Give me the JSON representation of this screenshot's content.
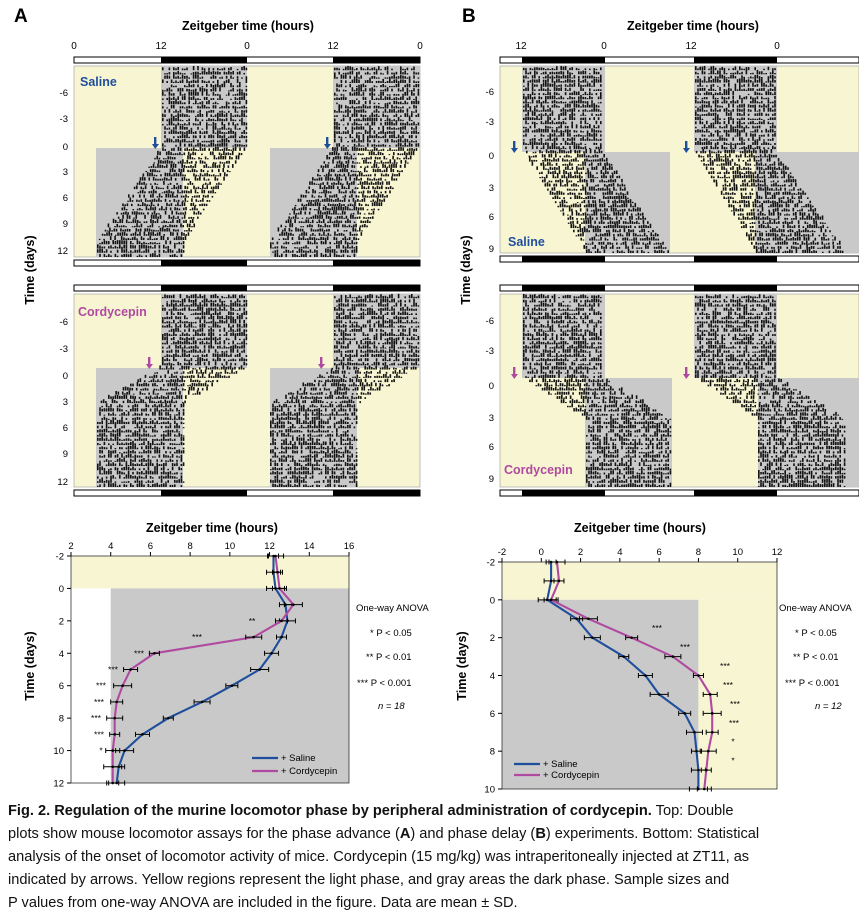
{
  "colors": {
    "light_phase": "#f7f5d2",
    "dark_phase": "#c9c9c9",
    "saline": "#1f4e9c",
    "cordycepin": "#b04aa0",
    "activity": "#111111"
  },
  "panels": {
    "A": {
      "letter": "A",
      "axis_title": "Zeitgeber time (hours)",
      "ticks": [
        "0",
        "12",
        "0",
        "12",
        "0"
      ],
      "actogram_saline": {
        "label": "Saline",
        "days": [
          "-6",
          "-3",
          "0",
          "3",
          "6",
          "9",
          "12"
        ]
      },
      "actogram_cordycepin": {
        "label": "Cordycepin",
        "days": [
          "-6",
          "-3",
          "0",
          "3",
          "6",
          "9",
          "12"
        ]
      }
    },
    "B": {
      "letter": "B",
      "axis_title": "Zeitgeber time (hours)",
      "ticks": [
        "12",
        "0",
        "12",
        "0"
      ],
      "actogram_saline": {
        "label": "Saline",
        "days": [
          "-6",
          "-3",
          "0",
          "3",
          "6",
          "9"
        ]
      },
      "actogram_cordycepin": {
        "label": "Cordycepin",
        "days": [
          "-6",
          "-3",
          "0",
          "3",
          "6",
          "9"
        ]
      }
    }
  },
  "time_axis_label": "Time (days)",
  "stats": {
    "title": "One-way ANOVA",
    "p1": "* P < 0.05",
    "p2": "** P < 0.01",
    "p3": "*** P < 0.001",
    "nA": "n = 18",
    "nB": "n = 12"
  },
  "chart_data": [
    {
      "type": "line",
      "panel": "A (bottom)",
      "xlabel": "Zeitgeber time (hours)",
      "ylabel": "Time (days)",
      "xlim": [
        2,
        16
      ],
      "xticks": [
        2,
        4,
        6,
        8,
        10,
        12,
        14,
        16
      ],
      "ylim": [
        -2,
        12
      ],
      "yticks": [
        -2,
        0,
        2,
        4,
        6,
        8,
        10,
        12
      ],
      "y_inverted": true,
      "series": [
        {
          "name": "+ Saline",
          "color": "#1f4e9c",
          "y": [
            -2,
            -1,
            0,
            1,
            2,
            3,
            4,
            5,
            6,
            7,
            8,
            9,
            10,
            11,
            12
          ],
          "x": [
            12.2,
            12.2,
            12.3,
            12.8,
            12.9,
            12.6,
            12.1,
            11.5,
            10.1,
            8.6,
            6.9,
            5.6,
            4.7,
            4.4,
            4.3
          ]
        },
        {
          "name": "+ Cordycepin",
          "color": "#b04aa0",
          "y": [
            -2,
            -1,
            0,
            1,
            2,
            3,
            4,
            5,
            6,
            7,
            8,
            9,
            10,
            11,
            12
          ],
          "x": [
            12.3,
            12.4,
            12.5,
            13.2,
            12.6,
            11.2,
            6.2,
            5.0,
            4.6,
            4.3,
            4.2,
            4.2,
            4.1,
            4.1,
            4.1
          ]
        }
      ],
      "significance": [
        {
          "y": 2,
          "stars": "**"
        },
        {
          "y": 3,
          "stars": "***"
        },
        {
          "y": 4,
          "stars": "***"
        },
        {
          "y": 5,
          "stars": "***"
        },
        {
          "y": 6,
          "stars": "***"
        },
        {
          "y": 7,
          "stars": "***"
        },
        {
          "y": 8,
          "stars": "***"
        },
        {
          "y": 9,
          "stars": "***"
        },
        {
          "y": 10,
          "stars": "*"
        }
      ],
      "legend": "bottom-right"
    },
    {
      "type": "line",
      "panel": "B (bottom)",
      "xlabel": "Zeitgeber time (hours)",
      "ylabel": "Time (days)",
      "xlim": [
        -2,
        12
      ],
      "xticks": [
        -2,
        0,
        2,
        4,
        6,
        8,
        10,
        12
      ],
      "ylim": [
        -2,
        10
      ],
      "yticks": [
        -2,
        0,
        2,
        4,
        6,
        8,
        10
      ],
      "y_inverted": true,
      "series": [
        {
          "name": "+ Saline",
          "color": "#1f4e9c",
          "y": [
            -2,
            -1,
            0,
            1,
            2,
            3,
            4,
            5,
            6,
            7,
            8,
            9,
            10
          ],
          "x": [
            0.5,
            0.5,
            0.3,
            1.8,
            2.6,
            4.2,
            5.3,
            6.0,
            7.3,
            7.8,
            7.9,
            8.0,
            8.0
          ]
        },
        {
          "name": "+ Cordycepin",
          "color": "#b04aa0",
          "y": [
            -2,
            -1,
            0,
            1,
            2,
            3,
            4,
            5,
            6,
            7,
            8,
            9,
            10
          ],
          "x": [
            0.8,
            0.9,
            0.5,
            2.4,
            4.6,
            6.7,
            8.0,
            8.6,
            8.7,
            8.7,
            8.5,
            8.4,
            8.3
          ]
        }
      ],
      "significance": [
        {
          "y": 1.5,
          "stars": "***"
        },
        {
          "y": 2.5,
          "stars": "***"
        },
        {
          "y": 3.5,
          "stars": "***"
        },
        {
          "y": 4.5,
          "stars": "***"
        },
        {
          "y": 5.5,
          "stars": "***"
        },
        {
          "y": 6.5,
          "stars": "***"
        },
        {
          "y": 7.5,
          "stars": "*"
        },
        {
          "y": 8.5,
          "stars": "*"
        }
      ],
      "legend": "bottom-left"
    }
  ],
  "caption": {
    "fig_label": "Fig. 2.",
    "title": "Regulation of the murine locomotor phase by peripheral administration of cordycepin.",
    "l1_rest": " Top: Double",
    "l2_a": "plots show mouse locomotor assays for the phase advance (",
    "l2_A": "A",
    "l2_b": ") and phase delay (",
    "l2_B": "B",
    "l2_c": ") experiments. Bottom: Statistical",
    "l3": "analysis of the onset of locomotor activity of mice. Cordycepin (15 mg/kg) was intraperitoneally injected at ZT11, as",
    "l4": "indicated by arrows. Yellow regions represent the light phase, and gray areas the dark phase. Sample sizes and",
    "l5": "P values from one-way ANOVA are included in the figure. Data are mean ± SD."
  }
}
